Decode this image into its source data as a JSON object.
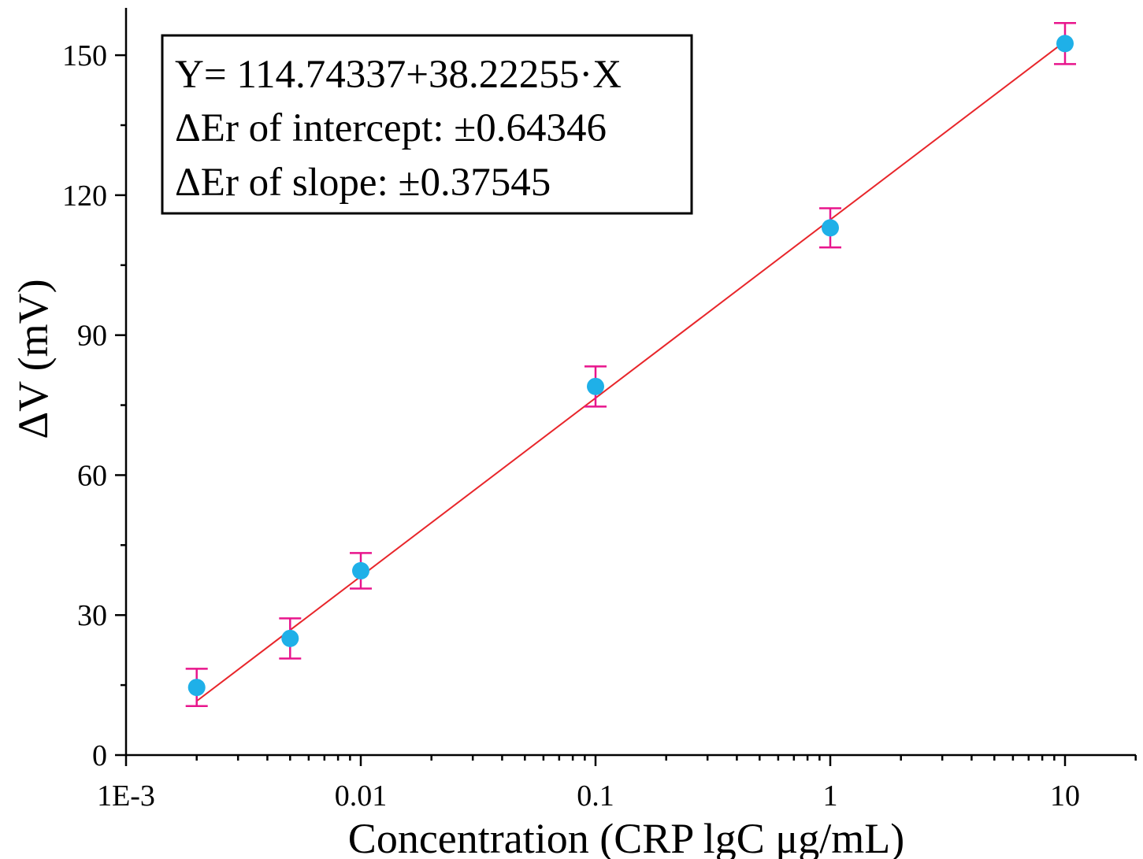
{
  "chart_data": {
    "type": "scatter",
    "x_scale": "log",
    "xlabel": "Concentration (CRP lgC μg/mL)",
    "ylabel": "ΔV (mV)",
    "xlim": [
      0.001,
      20
    ],
    "ylim": [
      0,
      160
    ],
    "x_ticks": [
      {
        "value": 0.001,
        "label": "1E-3"
      },
      {
        "value": 0.01,
        "label": "0.01"
      },
      {
        "value": 0.1,
        "label": "0.1"
      },
      {
        "value": 1,
        "label": "1"
      },
      {
        "value": 10,
        "label": "10"
      }
    ],
    "y_ticks": [
      {
        "value": 0,
        "label": "0"
      },
      {
        "value": 30,
        "label": "30"
      },
      {
        "value": 60,
        "label": "60"
      },
      {
        "value": 90,
        "label": "90"
      },
      {
        "value": 120,
        "label": "120"
      },
      {
        "value": 150,
        "label": "150"
      }
    ],
    "series": [
      {
        "points": [
          {
            "x": 0.002,
            "y": 14.5,
            "err": 4.0
          },
          {
            "x": 0.005,
            "y": 25.0,
            "err": 4.3
          },
          {
            "x": 0.01,
            "y": 39.5,
            "err": 3.8
          },
          {
            "x": 0.1,
            "y": 79.0,
            "err": 4.3
          },
          {
            "x": 1,
            "y": 113.0,
            "err": 4.2
          },
          {
            "x": 10,
            "y": 152.5,
            "err": 4.4
          }
        ]
      }
    ],
    "fit_line": {
      "x_range": [
        0.002,
        10
      ],
      "intercept": 114.74337,
      "slope": 38.22255
    },
    "annotation_lines": [
      "Y= 114.74337+38.22255·X",
      "ΔEr of intercept:  ±0.64346",
      "ΔEr of slope:  ±0.37545"
    ],
    "colors": {
      "marker": "#1fb0e8",
      "error_bar": "#e8158c",
      "fit_line": "#e8262b",
      "axis": "#000000"
    },
    "grid": false,
    "legend": "none"
  }
}
